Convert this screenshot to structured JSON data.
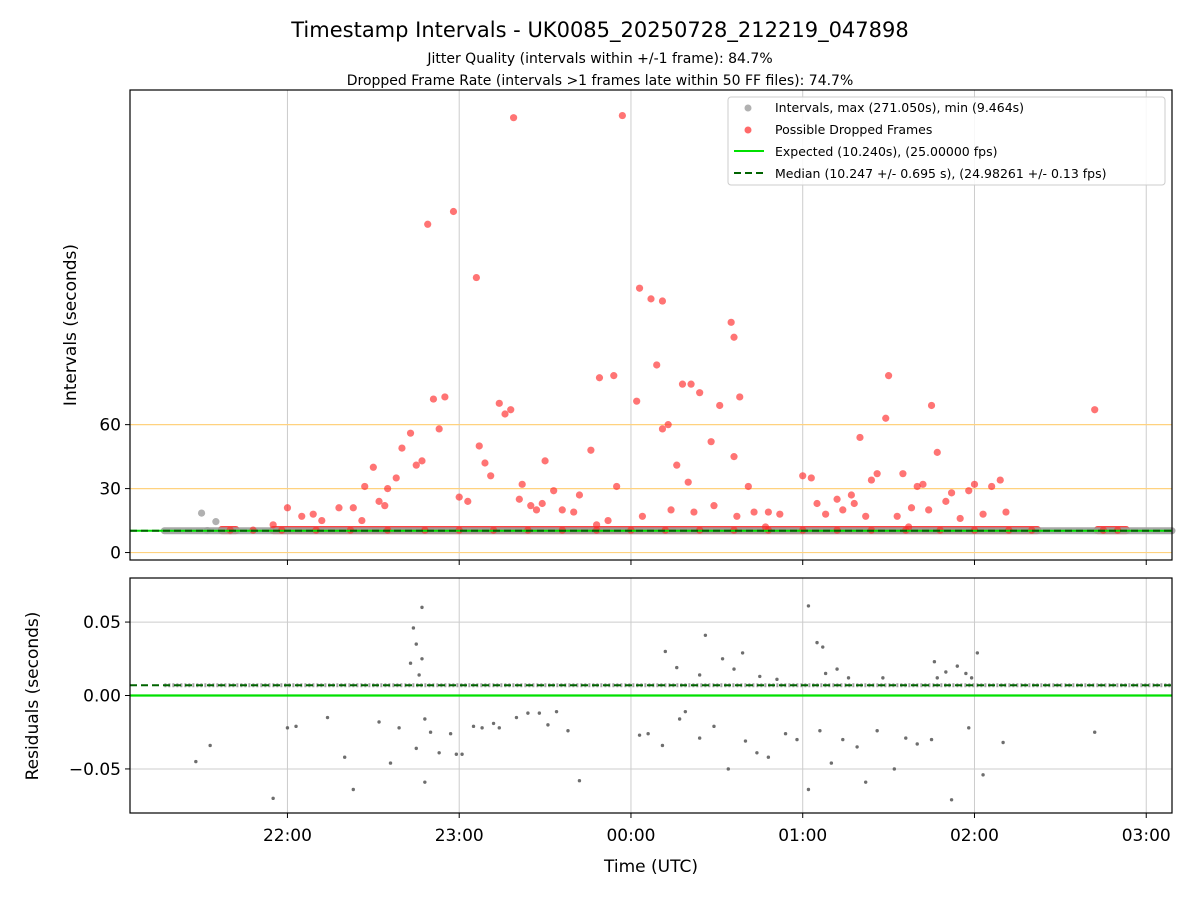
{
  "figure": {
    "title": "Timestamp Intervals - UK0085_20250728_212219_047898",
    "subtitle_1": "Jitter Quality (intervals within +/-1 frame): 84.7%",
    "subtitle_2": "Dropped Frame Rate (intervals >1 frames late within 50 FF files): 74.7%",
    "xlabel": "Time (UTC)"
  },
  "colors": {
    "intervals": "#9e9e9e",
    "dropped": "#ff2a2a",
    "expected": "#00e000",
    "median": "#006400",
    "threshold": "#ffd27f",
    "grid": "#cccccc",
    "residual_points": "#555555"
  },
  "chart_data": [
    {
      "type": "scatter",
      "ylabel": "Intervals (seconds)",
      "x_axis": {
        "type": "time",
        "ticks": [
          "22:00",
          "23:00",
          "00:00",
          "01:00",
          "02:00",
          "03:00"
        ],
        "range": [
          "21:05",
          "03:09"
        ]
      },
      "ylim": [
        -3.5,
        217
      ],
      "yticks": [
        0,
        30,
        60
      ],
      "threshold_lines_y": [
        0,
        30,
        60
      ],
      "grid": true,
      "legend_position": "top-right",
      "legend": [
        "Intervals, max (271.050s), min (9.464s)",
        "Possible Dropped Frames",
        "Expected (10.240s), (25.00000 fps)",
        "Median (10.247 +/- 0.695 s), (24.98261 +/- 0.13 fps)"
      ],
      "expected_y": 10.24,
      "median_y": 10.247,
      "series": [
        {
          "name": "Intervals, max (271.050s), min (9.464s)",
          "points": [
            [
              "21:30",
              18.5
            ],
            [
              "21:35",
              14.5
            ],
            [
              "21:32",
              10.3
            ],
            [
              "21:40",
              10.2
            ]
          ]
        },
        {
          "name": "Possible Dropped Frames",
          "points": [
            [
              "23:19",
              204
            ],
            [
              "23:57",
              205
            ],
            [
              "23:06",
              129
            ],
            [
              "22:49",
              154
            ],
            [
              "22:58",
              160
            ],
            [
              "00:03",
              124
            ],
            [
              "00:07",
              119
            ],
            [
              "00:11",
              118
            ],
            [
              "00:35",
              108
            ],
            [
              "00:36",
              101
            ],
            [
              "00:09",
              88
            ],
            [
              "01:30",
              83
            ],
            [
              "23:49",
              82
            ],
            [
              "23:54",
              83
            ],
            [
              "00:18",
              79
            ],
            [
              "00:21",
              79
            ],
            [
              "00:24",
              75
            ],
            [
              "00:38",
              73
            ],
            [
              "01:45",
              69
            ],
            [
              "02:42",
              67
            ],
            [
              "22:51",
              72
            ],
            [
              "22:55",
              73
            ],
            [
              "23:14",
              70
            ],
            [
              "23:16",
              65
            ],
            [
              "23:18",
              67
            ],
            [
              "00:02",
              71
            ],
            [
              "00:31",
              69
            ],
            [
              "00:13",
              60
            ],
            [
              "00:28",
              52
            ],
            [
              "00:11",
              58
            ],
            [
              "01:29",
              63
            ],
            [
              "01:20",
              54
            ],
            [
              "22:43",
              56
            ],
            [
              "22:53",
              58
            ],
            [
              "23:07",
              50
            ],
            [
              "22:40",
              49
            ],
            [
              "22:27",
              31
            ],
            [
              "22:30",
              40
            ],
            [
              "22:35",
              30
            ],
            [
              "22:38",
              35
            ],
            [
              "22:45",
              41
            ],
            [
              "22:47",
              43
            ],
            [
              "23:09",
              42
            ],
            [
              "23:11",
              36
            ],
            [
              "23:22",
              32
            ],
            [
              "23:30",
              43
            ],
            [
              "23:33",
              29
            ],
            [
              "23:42",
              27
            ],
            [
              "23:46",
              48
            ],
            [
              "23:55",
              31
            ],
            [
              "00:16",
              41
            ],
            [
              "00:20",
              33
            ],
            [
              "00:36",
              45
            ],
            [
              "00:41",
              31
            ],
            [
              "01:00",
              36
            ],
            [
              "01:03",
              35
            ],
            [
              "01:17",
              27
            ],
            [
              "01:24",
              34
            ],
            [
              "01:26",
              37
            ],
            [
              "01:35",
              37
            ],
            [
              "01:40",
              31
            ],
            [
              "01:42",
              32
            ],
            [
              "01:47",
              47
            ],
            [
              "01:52",
              28
            ],
            [
              "01:58",
              29
            ],
            [
              "02:00",
              32
            ],
            [
              "02:06",
              31
            ],
            [
              "02:09",
              34
            ],
            [
              "22:00",
              21
            ],
            [
              "22:05",
              17
            ],
            [
              "22:09",
              18
            ],
            [
              "22:18",
              21
            ],
            [
              "22:23",
              21
            ],
            [
              "22:32",
              24
            ],
            [
              "22:34",
              22
            ],
            [
              "23:00",
              26
            ],
            [
              "23:03",
              24
            ],
            [
              "23:21",
              25
            ],
            [
              "23:25",
              22
            ],
            [
              "23:27",
              20
            ],
            [
              "23:29",
              23
            ],
            [
              "23:36",
              20
            ],
            [
              "23:40",
              19
            ],
            [
              "23:52",
              15
            ],
            [
              "00:04",
              17
            ],
            [
              "00:14",
              20
            ],
            [
              "00:22",
              19
            ],
            [
              "00:29",
              22
            ],
            [
              "00:37",
              17
            ],
            [
              "00:43",
              19
            ],
            [
              "00:48",
              19
            ],
            [
              "00:52",
              18
            ],
            [
              "01:05",
              23
            ],
            [
              "01:08",
              18
            ],
            [
              "01:12",
              25
            ],
            [
              "01:14",
              20
            ],
            [
              "01:18",
              23
            ],
            [
              "01:22",
              17
            ],
            [
              "01:33",
              17
            ],
            [
              "01:38",
              21
            ],
            [
              "01:44",
              20
            ],
            [
              "01:50",
              24
            ],
            [
              "01:55",
              16
            ],
            [
              "02:03",
              18
            ],
            [
              "02:11",
              19
            ],
            [
              "21:55",
              13
            ],
            [
              "22:12",
              15
            ],
            [
              "22:26",
              15
            ],
            [
              "23:48",
              13
            ],
            [
              "01:37",
              12
            ],
            [
              "00:47",
              12
            ],
            [
              "21:40",
              10.5
            ],
            [
              "21:48",
              10.5
            ],
            [
              "21:58",
              10.5
            ],
            [
              "22:10",
              10.5
            ],
            [
              "22:22",
              10.5
            ],
            [
              "22:35",
              10.5
            ],
            [
              "22:48",
              10.5
            ],
            [
              "23:00",
              10.5
            ],
            [
              "23:12",
              10.5
            ],
            [
              "23:24",
              10.5
            ],
            [
              "23:36",
              10.5
            ],
            [
              "23:48",
              10.5
            ],
            [
              "00:00",
              10.5
            ],
            [
              "00:12",
              10.5
            ],
            [
              "00:24",
              10.5
            ],
            [
              "00:36",
              10.5
            ],
            [
              "00:48",
              10.5
            ],
            [
              "01:00",
              10.5
            ],
            [
              "01:12",
              10.5
            ],
            [
              "01:24",
              10.5
            ],
            [
              "01:36",
              10.5
            ],
            [
              "01:48",
              10.5
            ],
            [
              "02:00",
              10.5
            ],
            [
              "02:12",
              10.5
            ],
            [
              "02:20",
              10.5
            ],
            [
              "02:45",
              10.5
            ],
            [
              "02:50",
              10.5
            ]
          ]
        }
      ],
      "bands": [
        {
          "name": "Possible Dropped Frames",
          "x_from": "21:37",
          "x_to": "21:42",
          "y": 10.5
        },
        {
          "name": "Possible Dropped Frames",
          "x_from": "21:55",
          "x_to": "02:22",
          "y": 10.5
        },
        {
          "name": "Possible Dropped Frames",
          "x_from": "02:43",
          "x_to": "02:53",
          "y": 10.5
        },
        {
          "name": "Intervals, max (271.050s), min (9.464s)",
          "x_from": "21:17",
          "x_to": "03:09",
          "y": 10.24
        }
      ]
    },
    {
      "type": "scatter",
      "ylabel": "Residuals (seconds)",
      "x_axis": {
        "type": "time",
        "ticks": [
          "22:00",
          "23:00",
          "00:00",
          "01:00",
          "02:00",
          "03:00"
        ],
        "range": [
          "21:05",
          "03:09"
        ]
      },
      "ylim": [
        -0.08,
        0.08
      ],
      "yticks": [
        0.05,
        0.0,
        -0.05
      ],
      "ytick_labels": [
        "0.05",
        "0.00",
        "−0.05"
      ],
      "grid": true,
      "expected_y": 0.0,
      "median_y": 0.007,
      "baseline_band": {
        "x_from": "21:17",
        "x_to": "03:09",
        "y": 0.007
      },
      "points": [
        [
          "21:28",
          -0.045
        ],
        [
          "21:33",
          -0.034
        ],
        [
          "21:55",
          -0.07
        ],
        [
          "22:00",
          -0.022
        ],
        [
          "22:03",
          -0.021
        ],
        [
          "22:14",
          -0.015
        ],
        [
          "22:20",
          -0.042
        ],
        [
          "22:23",
          -0.064
        ],
        [
          "22:32",
          -0.018
        ],
        [
          "22:36",
          -0.046
        ],
        [
          "22:39",
          -0.022
        ],
        [
          "22:45",
          -0.036
        ],
        [
          "22:48",
          -0.016
        ],
        [
          "22:50",
          -0.025
        ],
        [
          "22:53",
          -0.039
        ],
        [
          "22:57",
          -0.026
        ],
        [
          "23:05",
          -0.021
        ],
        [
          "23:08",
          -0.022
        ],
        [
          "23:14",
          -0.022
        ],
        [
          "23:20",
          -0.015
        ],
        [
          "23:28",
          -0.012
        ],
        [
          "23:31",
          -0.02
        ],
        [
          "23:38",
          -0.024
        ],
        [
          "23:42",
          -0.058
        ],
        [
          "22:47",
          0.06
        ],
        [
          "22:44",
          0.046
        ],
        [
          "22:45",
          0.035
        ],
        [
          "22:43",
          0.022
        ],
        [
          "22:47",
          0.025
        ],
        [
          "22:46",
          0.014
        ],
        [
          "22:48",
          -0.059
        ],
        [
          "22:59",
          -0.04
        ],
        [
          "23:01",
          -0.04
        ],
        [
          "23:12",
          -0.019
        ],
        [
          "23:24",
          -0.012
        ],
        [
          "23:34",
          -0.011
        ],
        [
          "00:03",
          -0.027
        ],
        [
          "00:06",
          -0.026
        ],
        [
          "00:11",
          -0.034
        ],
        [
          "00:17",
          -0.016
        ],
        [
          "00:19",
          -0.011
        ],
        [
          "00:24",
          -0.029
        ],
        [
          "00:29",
          -0.021
        ],
        [
          "00:34",
          -0.05
        ],
        [
          "00:40",
          -0.031
        ],
        [
          "00:44",
          -0.039
        ],
        [
          "00:48",
          -0.042
        ],
        [
          "00:54",
          -0.026
        ],
        [
          "00:58",
          -0.03
        ],
        [
          "01:02",
          -0.064
        ],
        [
          "01:06",
          -0.024
        ],
        [
          "01:10",
          -0.046
        ],
        [
          "01:14",
          -0.03
        ],
        [
          "01:19",
          -0.035
        ],
        [
          "01:22",
          -0.059
        ],
        [
          "01:26",
          -0.024
        ],
        [
          "01:32",
          -0.05
        ],
        [
          "01:36",
          -0.029
        ],
        [
          "01:40",
          -0.033
        ],
        [
          "01:45",
          -0.03
        ],
        [
          "01:52",
          -0.071
        ],
        [
          "01:58",
          -0.022
        ],
        [
          "02:03",
          -0.054
        ],
        [
          "02:10",
          -0.032
        ],
        [
          "02:42",
          -0.025
        ],
        [
          "00:12",
          0.03
        ],
        [
          "00:16",
          0.019
        ],
        [
          "00:26",
          0.041
        ],
        [
          "00:24",
          0.014
        ],
        [
          "00:32",
          0.025
        ],
        [
          "00:36",
          0.018
        ],
        [
          "00:39",
          0.029
        ],
        [
          "00:45",
          0.013
        ],
        [
          "00:51",
          0.011
        ],
        [
          "01:02",
          0.061
        ],
        [
          "01:05",
          0.036
        ],
        [
          "01:07",
          0.033
        ],
        [
          "01:08",
          0.015
        ],
        [
          "01:12",
          0.018
        ],
        [
          "01:16",
          0.012
        ],
        [
          "01:28",
          0.012
        ],
        [
          "01:47",
          0.012
        ],
        [
          "01:57",
          0.015
        ],
        [
          "02:01",
          0.029
        ],
        [
          "01:59",
          0.012
        ],
        [
          "01:54",
          0.02
        ],
        [
          "01:50",
          0.016
        ],
        [
          "01:46",
          0.023
        ]
      ]
    }
  ]
}
